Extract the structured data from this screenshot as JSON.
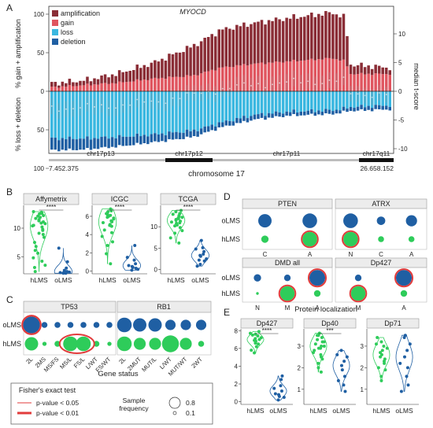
{
  "panel_labels": [
    "A",
    "B",
    "C",
    "D",
    "E"
  ],
  "chart_data": [
    {
      "panel": "A",
      "type": "bar",
      "title": "MYOCD",
      "legend": [
        "amplification",
        "gain",
        "loss",
        "deletion"
      ],
      "legend_placement": "top-left",
      "colors": {
        "amplification": "#8a2d36",
        "gain": "#e0555f",
        "loss": "#3ab7e0",
        "deletion": "#1f5fa3",
        "median": "#999999"
      },
      "ylabel_top": "% gain + amplification",
      "ylabel_bottom": "% loss + deletion",
      "y2label": "median t-score",
      "xlabel": "chromosome 17",
      "yticks_left": [
        "100",
        "50",
        "0",
        "50",
        "100"
      ],
      "yticks_right": [
        "10",
        "5",
        "0",
        "-5",
        "-10"
      ],
      "ylim_left": [
        -100,
        100
      ],
      "ylim_right": [
        -13,
        13
      ],
      "bands": [
        "chr17p13",
        "chr17p12",
        "chr17p11",
        "chr17q11"
      ],
      "range_start": "7.452.375",
      "range_end": "26.658.152",
      "gain_profile": [
        [
          0,
          5
        ],
        [
          0.1,
          8
        ],
        [
          0.2,
          11
        ],
        [
          0.3,
          16
        ],
        [
          0.42,
          20
        ],
        [
          0.5,
          30
        ],
        [
          0.6,
          35
        ],
        [
          0.7,
          38
        ],
        [
          0.83,
          42
        ],
        [
          0.87,
          38
        ],
        [
          0.88,
          22
        ],
        [
          1,
          22
        ]
      ],
      "amp_profile": [
        [
          0,
          5
        ],
        [
          0.1,
          6
        ],
        [
          0.2,
          12
        ],
        [
          0.3,
          20
        ],
        [
          0.42,
          38
        ],
        [
          0.5,
          48
        ],
        [
          0.6,
          52
        ],
        [
          0.7,
          55
        ],
        [
          0.83,
          58
        ],
        [
          0.87,
          55
        ],
        [
          0.88,
          12
        ],
        [
          1,
          8
        ]
      ],
      "loss_profile": [
        [
          0,
          60
        ],
        [
          0.1,
          60
        ],
        [
          0.2,
          58
        ],
        [
          0.3,
          55
        ],
        [
          0.42,
          50
        ],
        [
          0.5,
          40
        ],
        [
          0.6,
          30
        ],
        [
          0.7,
          26
        ],
        [
          0.83,
          24
        ],
        [
          0.87,
          22
        ],
        [
          0.88,
          20
        ],
        [
          1,
          18
        ]
      ],
      "del_profile": [
        [
          0,
          15
        ],
        [
          0.1,
          14
        ],
        [
          0.2,
          12
        ],
        [
          0.3,
          10
        ],
        [
          0.42,
          8
        ],
        [
          0.5,
          6
        ],
        [
          0.6,
          6
        ],
        [
          0.7,
          5
        ],
        [
          0.83,
          5
        ],
        [
          0.87,
          4
        ],
        [
          0.88,
          5
        ],
        [
          1,
          5
        ]
      ]
    },
    {
      "panel": "B",
      "type": "scatter",
      "subplots": [
        {
          "title": "Affymetrix",
          "categories": [
            "hLMS",
            "oLMS"
          ],
          "yticks": [
            "5",
            "10"
          ],
          "ylim": [
            2,
            14
          ],
          "sig": "****",
          "hLMS": [
            11.5,
            10.8,
            12.5,
            9.6,
            12.8,
            10.2,
            8.9,
            11.9,
            7.5,
            6.8,
            11.3,
            12.1,
            10.5,
            9.1,
            5.6,
            4.2,
            3.5,
            12.6,
            11.1,
            10.9,
            8.4,
            9.8,
            12.2,
            6.1,
            4.8,
            3.1,
            11.7,
            10.4,
            12.9,
            2.4
          ],
          "oLMS": [
            2.1,
            2.3,
            2.2,
            2.4,
            2.1,
            3.0,
            4.1,
            2.6,
            6.5,
            2.2
          ]
        },
        {
          "title": "ICGC",
          "categories": [
            "hLMS",
            "oLMS"
          ],
          "yticks": [
            "0",
            "2",
            "4",
            "6"
          ],
          "ylim": [
            -0.3,
            7.2
          ],
          "sig": "****",
          "hLMS": [
            6.2,
            5.8,
            6.5,
            5.5,
            5.1,
            6.8,
            4.9,
            6.0,
            5.3,
            4.5,
            5.9,
            6.3,
            3.8,
            2.8,
            1.9,
            0.8,
            5.7,
            6.1,
            4.2,
            5.0,
            3.2,
            6.6,
            5.4
          ],
          "oLMS": [
            0.1,
            0.2,
            0.5,
            0.8,
            1.2,
            2.8,
            0.3,
            0.4,
            1.5,
            0.6
          ]
        },
        {
          "title": "TCGA",
          "categories": [
            "hLMS",
            "oLMS"
          ],
          "yticks": [
            "0",
            "5",
            "10"
          ],
          "ylim": [
            -1,
            15
          ],
          "sig": "****",
          "hLMS": [
            11.5,
            12.2,
            10.8,
            13.1,
            11.9,
            12.6,
            9.8,
            10.4,
            11.1,
            12.9,
            13.5,
            8.5,
            7.4,
            11.7,
            10.2,
            12.4,
            9.1,
            6.2,
            11.3,
            12.0,
            13.8,
            10.9
          ],
          "oLMS": [
            1.2,
            2.5,
            3.1,
            4.2,
            5.1,
            3.6,
            2.0,
            6.8,
            4.8,
            0.8,
            3.3,
            2.2
          ]
        }
      ]
    },
    {
      "panel": "C",
      "type": "scatter",
      "xlabel": "Gene status",
      "groups": [
        {
          "title": "TP53",
          "categories": [
            "2L",
            "2MS",
            "MS/FS",
            "MS/L",
            "FS/L",
            "L/WT",
            "FS/WT"
          ]
        },
        {
          "title": "RB1",
          "categories": [
            "2L",
            "2MUT",
            "MUT/L",
            "L/WT",
            "MUT/WT",
            "2WT"
          ]
        }
      ],
      "rows": [
        "oLMS",
        "hLMS"
      ],
      "oLMS_freq": [
        0.8,
        0.1,
        0.1,
        0.1,
        0.1,
        0.1,
        0.1,
        0.6,
        0.5,
        0.5,
        0.3,
        0.3,
        0.3
      ],
      "hLMS_freq": [
        0.5,
        0.05,
        0.1,
        0.6,
        0.6,
        0.1,
        0.05,
        0.6,
        0.4,
        0.4,
        0.8,
        0.4,
        0.1
      ],
      "highlight_red": [
        "oLMS:TP53:2L"
      ],
      "highlight_ellipse": [
        "hLMS:TP53:MS/L",
        "hLMS:TP53:FS/L"
      ]
    },
    {
      "panel": "D",
      "type": "scatter",
      "xlabel": "Protein localization",
      "rows": [
        "oLMS",
        "hLMS"
      ],
      "subplots": [
        {
          "title": "PTEN",
          "categories": [
            "C",
            "A"
          ],
          "oLMS": [
            0.5,
            0.6
          ],
          "hLMS": [
            0.15,
            0.6
          ],
          "red": [
            "hLMS:A"
          ]
        },
        {
          "title": "ATRX",
          "categories": [
            "N",
            "C",
            "A"
          ],
          "oLMS": [
            0.6,
            0.2,
            0.35
          ],
          "hLMS": [
            0.6,
            0.1,
            0.1
          ],
          "red": [
            "hLMS:N"
          ]
        },
        {
          "title": "DMD all",
          "categories": [
            "N",
            "M",
            "A"
          ],
          "oLMS": [
            0.15,
            0.12,
            0.7
          ],
          "hLMS": [
            0.02,
            0.6,
            0.12
          ],
          "red": [
            "oLMS:A",
            "hLMS:M"
          ]
        },
        {
          "title": "Dp427",
          "categories": [
            "M",
            "A"
          ],
          "oLMS": [
            0.12,
            0.7
          ],
          "hLMS": [
            0.6,
            0.12
          ],
          "red": [
            "oLMS:A",
            "hLMS:M"
          ]
        }
      ]
    },
    {
      "panel": "E",
      "type": "scatter",
      "subplots": [
        {
          "title": "Dp427",
          "categories": [
            "hLMS",
            "oLMS"
          ],
          "yticks": [
            "0",
            "2",
            "4",
            "6",
            "8"
          ],
          "ylim": [
            -0.3,
            8.2
          ],
          "sig": "****",
          "hLMS": [
            7.6,
            7.2,
            6.8,
            7.9,
            7.4,
            6.5,
            7.0,
            6.2,
            5.8,
            7.5,
            7.1,
            6.9,
            7.7,
            6.6,
            5.5
          ],
          "oLMS": [
            0.2,
            0.5,
            0.8,
            1.2,
            1.8,
            2.5,
            2.9,
            0.6,
            1.5,
            0.9
          ]
        },
        {
          "title": "Dp40",
          "categories": [
            "hLMS",
            "oLMS"
          ],
          "yticks": [
            "1",
            "2",
            "3"
          ],
          "ylim": [
            0.3,
            3.8
          ],
          "sig": "***",
          "hLMS": [
            3.5,
            3.2,
            2.9,
            3.4,
            2.6,
            3.0,
            2.4,
            3.6,
            2.8,
            3.1,
            2.2,
            3.3,
            2.7,
            2.0,
            3.5,
            2.5,
            3.0,
            1.8,
            3.2,
            2.9
          ],
          "oLMS": [
            2.8,
            2.5,
            2.1,
            1.6,
            1.2,
            2.3,
            0.9,
            1.9,
            2.6,
            1.4
          ]
        },
        {
          "title": "Dp71",
          "categories": [
            "hLMS",
            "oLMS"
          ],
          "yticks": [
            "1",
            "2",
            "3"
          ],
          "ylim": [
            0.3,
            3.8
          ],
          "sig": "",
          "hLMS": [
            3.2,
            2.9,
            2.6,
            2.4,
            3.0,
            2.2,
            1.9,
            2.8,
            3.4,
            2.0,
            1.6,
            2.5,
            3.1,
            1.4,
            2.7,
            2.3
          ],
          "oLMS": [
            3.4,
            3.1,
            2.5,
            2.0,
            1.6,
            2.8,
            1.2,
            3.5,
            2.2,
            0.9
          ]
        }
      ]
    }
  ],
  "legend_box": {
    "fisher_title": "Fisher's exact test",
    "p05": "p-value < 0.05",
    "p01": "p-value < 0.01",
    "size_title": "Sample\nfrequency",
    "size_values": [
      "0.8",
      "0.1"
    ]
  }
}
